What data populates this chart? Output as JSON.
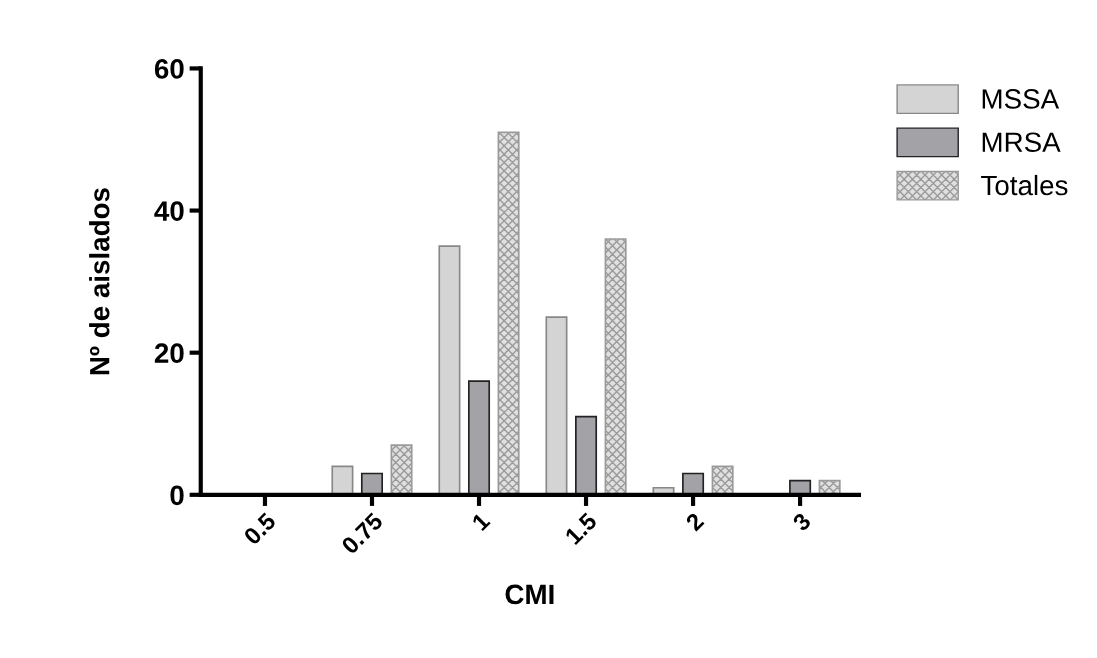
{
  "chart_data": {
    "type": "bar",
    "xlabel": "CMI",
    "ylabel": "Nº de aislados",
    "categories": [
      "0.5",
      "0.75",
      "1",
      "1.5",
      "2",
      "3"
    ],
    "series": [
      {
        "name": "MSSA",
        "color": "#d4d4d4",
        "values": [
          0,
          4,
          35,
          25,
          1,
          0
        ]
      },
      {
        "name": "MRSA",
        "color": "#a3a3a7",
        "values": [
          0,
          3,
          16,
          11,
          3,
          2
        ]
      },
      {
        "name": "Totales",
        "color": "#9a9a9a",
        "values": [
          0,
          7,
          51,
          36,
          4,
          2
        ]
      }
    ],
    "ylim": [
      0,
      60
    ],
    "yticks": [
      0,
      20,
      40,
      60
    ],
    "grid": false,
    "legend": "top right"
  }
}
